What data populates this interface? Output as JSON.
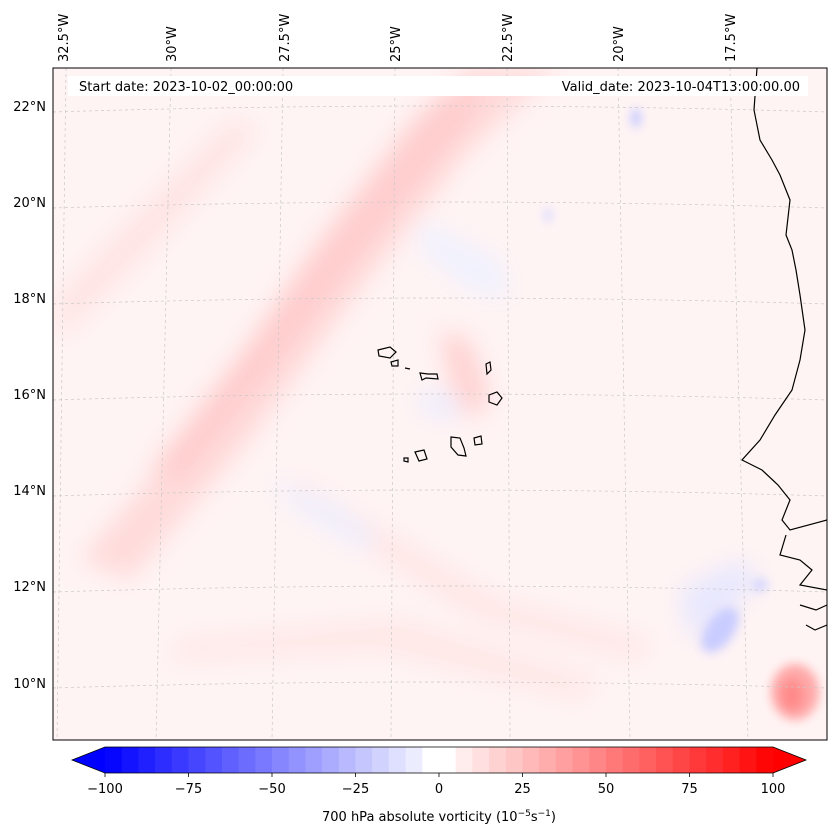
{
  "map": {
    "start_date": "Start date: 2023-10-02_00:00:00",
    "valid_date": "Valid_date: 2023-10-04T13:00:00.00",
    "lon_labels": [
      "32.5°W",
      "30°W",
      "27.5°W",
      "25°W",
      "22.5°W",
      "20°W",
      "17.5°W"
    ],
    "lat_labels": [
      "22°N",
      "20°N",
      "18°N",
      "16°N",
      "14°N",
      "12°N",
      "10°N"
    ],
    "coast_color": "#000000",
    "grid_color": "#c8c8c8"
  },
  "colorbar": {
    "label_main": "700 hPa absolute vorticity (10",
    "label_exp1": "−5",
    "label_mid": "s",
    "label_exp2": "−1",
    "label_end": ")",
    "ticks": [
      "−100",
      "−75",
      "−50",
      "−25",
      "0",
      "25",
      "50",
      "75",
      "100"
    ],
    "vmin": -100,
    "vmax": 100,
    "step": 5,
    "low_color": "#0000ff",
    "mid_color": "#ffffff",
    "high_color": "#ff0000"
  }
}
